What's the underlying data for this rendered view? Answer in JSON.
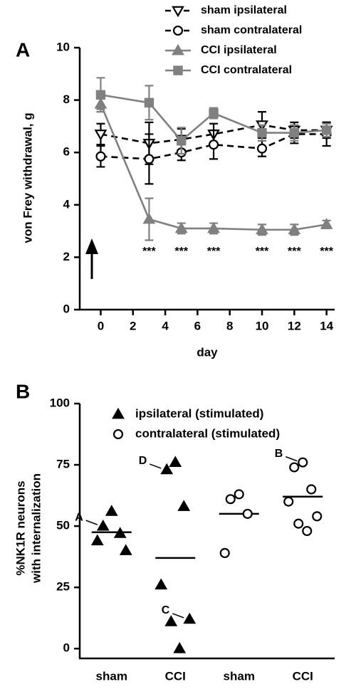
{
  "chart_data": [
    {
      "type": "line",
      "panel": "A",
      "xlabel": "day",
      "ylabel": "von Frey withdrawal, g",
      "x": [
        0,
        3,
        5,
        7,
        10,
        12,
        14
      ],
      "xlim": [
        -1.3,
        14.5
      ],
      "xticks": [
        0,
        2,
        4,
        6,
        8,
        10,
        12,
        14
      ],
      "ylim": [
        0,
        10
      ],
      "yticks": [
        0,
        2,
        4,
        6,
        8,
        10
      ],
      "legend": "top-right",
      "series": [
        {
          "name": "sham ipsilateral",
          "color": "#000000",
          "dashed": true,
          "marker": "triangle-down",
          "filled": false,
          "values": [
            6.7,
            6.35,
            6.5,
            6.7,
            7.05,
            6.85,
            6.85
          ],
          "errors": [
            0.4,
            0.8,
            0.4,
            0.4,
            0.5,
            0.3,
            0.3
          ]
        },
        {
          "name": "sham contralateral",
          "color": "#000000",
          "dashed": true,
          "marker": "circle",
          "filled": false,
          "values": [
            5.85,
            5.75,
            6.0,
            6.3,
            6.15,
            6.7,
            6.7
          ],
          "errors": [
            0.4,
            0.95,
            0.3,
            0.55,
            0.3,
            0.35,
            0.45
          ]
        },
        {
          "name": "CCI ipsilateral",
          "color": "#808080",
          "dashed": false,
          "marker": "triangle-up",
          "filled": true,
          "values": [
            7.85,
            3.45,
            3.1,
            3.1,
            3.05,
            3.05,
            3.25
          ],
          "errors": [
            0.2,
            0.8,
            0.2,
            0.2,
            0.2,
            0.2,
            0.15
          ]
        },
        {
          "name": "CCI contralateral",
          "color": "#808080",
          "dashed": false,
          "marker": "square",
          "filled": true,
          "values": [
            8.2,
            7.9,
            6.45,
            7.5,
            6.75,
            6.75,
            6.85
          ],
          "errors": [
            0.65,
            0.65,
            0.5,
            0.2,
            0.3,
            0.3,
            0.25
          ]
        }
      ],
      "significance_labels": [
        null,
        "***",
        "***",
        "***",
        "***",
        "***",
        "***"
      ]
    },
    {
      "type": "scatter",
      "panel": "B",
      "ylabel": [
        "%NK1R neurons",
        "with internalization"
      ],
      "categories": [
        "sham",
        "CCI",
        "sham",
        "CCI"
      ],
      "ylim": [
        -4,
        100
      ],
      "yticks": [
        0,
        25,
        50,
        75,
        100
      ],
      "legend": "top-right",
      "series": [
        {
          "name": "ipsilateral (stimulated)",
          "color": "#000000",
          "marker": "triangle-up",
          "filled": true,
          "values": [
            [
              56,
              50,
              47,
              44,
              40
            ],
            [
              76,
              73,
              58,
              26,
              12,
              11,
              0
            ]
          ],
          "means": [
            47.5,
            37
          ],
          "point_labels": [
            [
              null,
              "A",
              null,
              null,
              null
            ],
            [
              null,
              "D",
              null,
              null,
              "C",
              null,
              null
            ]
          ]
        },
        {
          "name": "contralateral (stimulated)",
          "color": "#000000",
          "marker": "circle",
          "filled": false,
          "values": [
            [
              63,
              61,
              55,
              39
            ],
            [
              76,
              74,
              65,
              60,
              54,
              51,
              48
            ]
          ],
          "means": [
            55,
            62
          ],
          "point_labels": [
            [
              null,
              null,
              null,
              null
            ],
            [
              "B",
              null,
              null,
              null,
              null,
              null,
              null
            ]
          ]
        }
      ]
    }
  ]
}
